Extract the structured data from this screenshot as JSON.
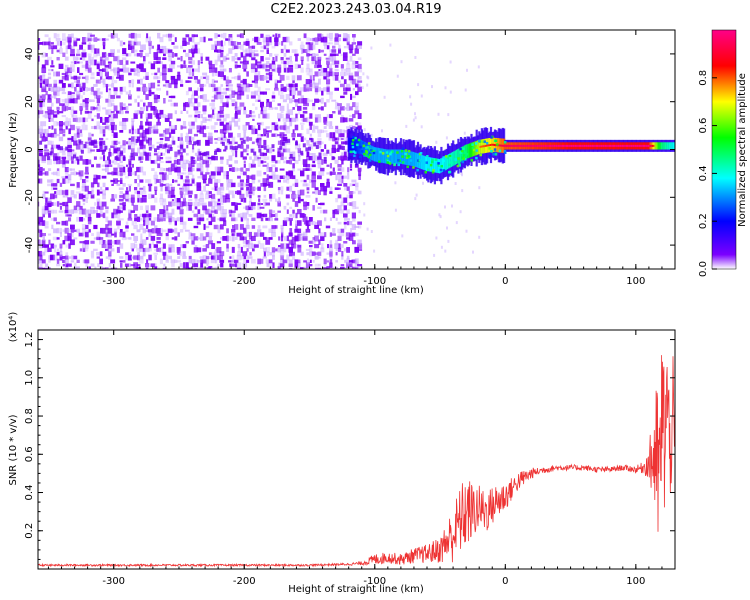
{
  "title": "C2E2.2023.243.03.04.R19",
  "chart_data": [
    {
      "type": "heatmap",
      "title": "C2E2.2023.243.03.04.R19",
      "xlabel": "Height of straight line (km)",
      "ylabel": "Frequency (Hz)",
      "xlim": [
        -358,
        130
      ],
      "ylim": [
        -50,
        50
      ],
      "xticks": [
        -300,
        -200,
        -100,
        0,
        100
      ],
      "yticks": [
        -40,
        -20,
        0,
        20,
        40
      ],
      "colorbar": {
        "label": "Normalized spectral amplitude",
        "range": [
          0.0,
          1.0
        ],
        "ticks": [
          "0.0",
          "0.2",
          "0.4",
          "0.6",
          "0.8"
        ],
        "tick_values": [
          0.0,
          0.2,
          0.4,
          0.6,
          0.8
        ],
        "colormap": [
          "#ffffff",
          "#7b00ff",
          "#0000ff",
          "#00ffff",
          "#00ff00",
          "#ffff00",
          "#ff0000",
          "#ff0088"
        ]
      },
      "noise_region": {
        "x_range": [
          -358,
          -110
        ],
        "f_range": [
          -50,
          48
        ],
        "amplitude": [
          0.02,
          0.15
        ]
      },
      "ridge": [
        {
          "x": -120,
          "f": 2,
          "amp": 0.3
        },
        {
          "x": -110,
          "f": 1,
          "amp": 0.4
        },
        {
          "x": -100,
          "f": -2,
          "amp": 0.45
        },
        {
          "x": -90,
          "f": -3,
          "amp": 0.45
        },
        {
          "x": -80,
          "f": -3,
          "amp": 0.45
        },
        {
          "x": -70,
          "f": -4,
          "amp": 0.45
        },
        {
          "x": -60,
          "f": -6,
          "amp": 0.5
        },
        {
          "x": -50,
          "f": -7,
          "amp": 0.5
        },
        {
          "x": -40,
          "f": -4,
          "amp": 0.55
        },
        {
          "x": -30,
          "f": -1,
          "amp": 0.6
        },
        {
          "x": -20,
          "f": 1,
          "amp": 0.8
        },
        {
          "x": -10,
          "f": 2,
          "amp": 0.85
        },
        {
          "x": 0,
          "f": 1.5,
          "amp": 0.95
        },
        {
          "x": 50,
          "f": 1.5,
          "amp": 1.0
        },
        {
          "x": 110,
          "f": 1.5,
          "amp": 1.0
        },
        {
          "x": 120,
          "f": 1.5,
          "amp": 0.6
        },
        {
          "x": 130,
          "f": 1.5,
          "amp": 0.5
        }
      ]
    },
    {
      "type": "line",
      "xlabel": "Height of straight line (km)",
      "ylabel": "SNR (10 * v/v)",
      "scale_label": "(x10⁴)",
      "xlim": [
        -358,
        130
      ],
      "ylim": [
        0.0,
        1.25
      ],
      "xticks": [
        -300,
        -200,
        -100,
        0,
        100
      ],
      "yticks": [
        "0.2",
        "0.4",
        "0.6",
        "0.8",
        "1.0",
        "1.2"
      ],
      "ytick_values": [
        0.2,
        0.4,
        0.6,
        0.8,
        1.0,
        1.2
      ],
      "color": "#ee3333",
      "series": [
        {
          "x": [
            -358,
            -300,
            -250,
            -200,
            -150,
            -120,
            -110,
            -100,
            -90,
            -80,
            -70,
            -60,
            -50,
            -40,
            -35,
            -30,
            -25,
            -20,
            -15,
            -10,
            -5,
            0,
            5,
            10,
            15,
            20,
            25,
            30,
            40,
            50,
            60,
            70,
            80,
            90,
            100,
            105,
            110,
            115,
            118,
            120,
            122,
            124,
            126,
            128,
            130
          ],
          "y": [
            0.02,
            0.02,
            0.02,
            0.02,
            0.02,
            0.025,
            0.03,
            0.05,
            0.06,
            0.05,
            0.07,
            0.08,
            0.1,
            0.18,
            0.25,
            0.3,
            0.3,
            0.32,
            0.3,
            0.33,
            0.36,
            0.38,
            0.42,
            0.46,
            0.48,
            0.5,
            0.51,
            0.52,
            0.53,
            0.53,
            0.53,
            0.52,
            0.52,
            0.53,
            0.52,
            0.53,
            0.55,
            0.6,
            0.45,
            0.8,
            0.7,
            0.9,
            0.6,
            0.85,
            0.55
          ],
          "spread": [
            0.005,
            0.005,
            0.005,
            0.005,
            0.005,
            0.006,
            0.01,
            0.03,
            0.03,
            0.03,
            0.04,
            0.05,
            0.07,
            0.15,
            0.18,
            0.2,
            0.15,
            0.12,
            0.12,
            0.1,
            0.1,
            0.08,
            0.06,
            0.05,
            0.04,
            0.03,
            0.02,
            0.02,
            0.015,
            0.015,
            0.015,
            0.015,
            0.015,
            0.015,
            0.02,
            0.03,
            0.08,
            0.4,
            0.45,
            0.45,
            0.45,
            0.35,
            0.3,
            0.35,
            0.3
          ]
        }
      ]
    }
  ]
}
